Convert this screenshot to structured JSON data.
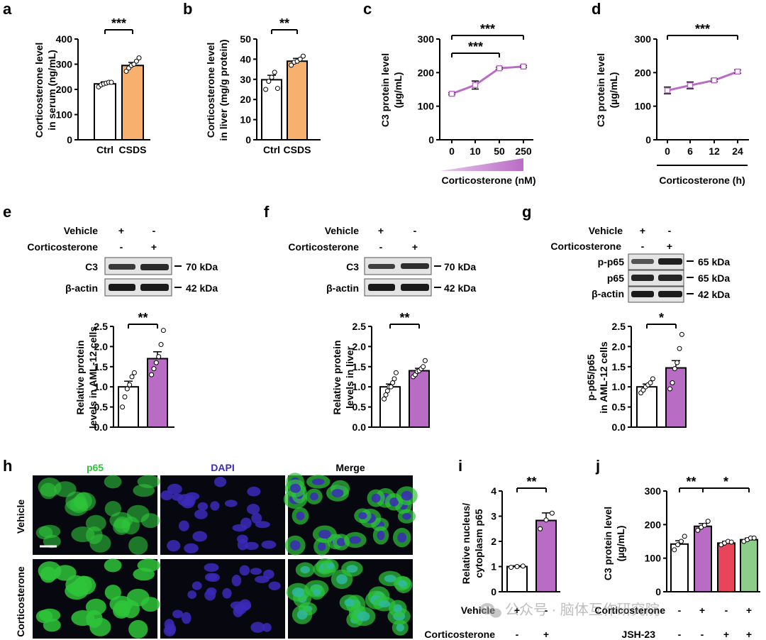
{
  "colors": {
    "corticosterone_purple": "#b86cc4",
    "csds_orange": "#f7b06e",
    "red_bar": "#e8445a",
    "green_bar": "#8ccd8a",
    "p65_green": "#2ec43a",
    "dapi_blue": "#3a2ab8",
    "line_purple": "#b86cc4"
  },
  "panels": {
    "a": {
      "label": "a",
      "ylabel": [
        "Corticosterone level",
        "in serum (ng/mL)"
      ],
      "sig": "***"
    },
    "b": {
      "label": "b",
      "ylabel": [
        "Corticosterone level",
        "in liver (mg/g protein)"
      ],
      "sig": "**"
    },
    "c": {
      "label": "c",
      "ylabel": [
        "C3 protein level",
        "(µg/mL)"
      ],
      "sig1": "***",
      "sig2": "***",
      "xlabel": "Corticosterone (nM)"
    },
    "d": {
      "label": "d",
      "ylabel": [
        "C3 protein level",
        "(µg/mL)"
      ],
      "sig": "***",
      "xlabel": "Corticosterone (h)"
    },
    "e": {
      "label": "e",
      "ylabel": [
        "Relative protein",
        "levels in AML-12 cells"
      ],
      "sig": "**"
    },
    "f": {
      "label": "f",
      "ylabel": [
        "Relative protein",
        "levels in liver"
      ],
      "sig": "**"
    },
    "g": {
      "label": "g",
      "ylabel": [
        "p-p65/p65",
        "in AML-12 cells"
      ],
      "sig": "*"
    },
    "h": {
      "label": "h",
      "p65": "p65",
      "dapi": "DAPI",
      "merge": "Merge",
      "row1": "Vehicle",
      "row2": "Corticosterone"
    },
    "i": {
      "label": "i",
      "ylabel": [
        "Relative nucleus/",
        "cytoplasm p65"
      ],
      "sig": "**"
    },
    "j": {
      "label": "j",
      "ylabel": [
        "C3 protein level",
        "(µg/mL)"
      ],
      "sig1": "**",
      "sig2": "*",
      "row3": "JSH-23"
    }
  },
  "blots": {
    "vehicle": "Vehicle",
    "corticosterone": "Corticosterone",
    "plus": "+",
    "minus": "-",
    "c3": "C3",
    "bactin": "β-actin",
    "pp65": "p-p65",
    "p65": "p65",
    "kda70": "70 kDa",
    "kda42": "42 kDa",
    "kda65": "65 kDa"
  },
  "watermark": "公众号 · 脑体互作研究院",
  "chart_data": [
    {
      "panel": "a",
      "type": "bar",
      "categories": [
        "Ctrl",
        "CSDS"
      ],
      "values": [
        222,
        295
      ],
      "errors": [
        8,
        12
      ],
      "points": [
        [
          210,
          218,
          222,
          225,
          228,
          228
        ],
        [
          272,
          285,
          295,
          300,
          312,
          325
        ]
      ],
      "ylim": [
        0,
        400
      ],
      "yticks": [
        0,
        100,
        200,
        300,
        400
      ],
      "sig": "***"
    },
    {
      "panel": "b",
      "type": "bar",
      "categories": [
        "Ctrl",
        "CSDS"
      ],
      "values": [
        29.8,
        39
      ],
      "errors": [
        2.2,
        1.4
      ],
      "points": [
        [
          25,
          29,
          31,
          33.5,
          25.5
        ],
        [
          37,
          38.5,
          39,
          40,
          41.5
        ]
      ],
      "ylim": [
        0,
        50
      ],
      "yticks": [
        0,
        10,
        20,
        30,
        40,
        50
      ],
      "sig": "**"
    },
    {
      "panel": "c",
      "type": "line",
      "x": [
        "0",
        "10",
        "50",
        "250"
      ],
      "y": [
        137,
        163,
        213,
        218
      ],
      "errors": [
        3,
        12,
        3,
        3
      ],
      "ylim": [
        0,
        300
      ],
      "yticks": [
        0,
        100,
        200,
        300
      ],
      "xlabel": "Corticosterone (nM)"
    },
    {
      "panel": "d",
      "type": "line",
      "x": [
        "0",
        "6",
        "12",
        "24"
      ],
      "y": [
        147,
        162,
        177,
        203
      ],
      "errors": [
        10,
        10,
        4,
        5
      ],
      "ylim": [
        0,
        300
      ],
      "yticks": [
        0,
        100,
        200,
        300
      ],
      "xlabel": "Corticosterone (h)"
    },
    {
      "panel": "e",
      "type": "bar",
      "categories": [
        "Vehicle",
        "Corticosterone"
      ],
      "values": [
        1.0,
        1.7
      ],
      "errors": [
        0.14,
        0.17
      ],
      "points": [
        [
          0.5,
          0.75,
          0.95,
          1.05,
          1.25,
          1.35
        ],
        [
          1.3,
          1.45,
          1.6,
          1.75,
          2.05,
          2.4
        ]
      ],
      "ylim": [
        0,
        2.5
      ],
      "yticks": [
        0.0,
        0.5,
        1.0,
        1.5,
        2.0,
        2.5
      ],
      "sig": "**"
    },
    {
      "panel": "f",
      "type": "bar",
      "categories": [
        "Vehicle",
        "Corticosterone"
      ],
      "values": [
        1.0,
        1.4
      ],
      "errors": [
        0.07,
        0.06
      ],
      "points": [
        [
          0.7,
          0.8,
          0.9,
          1.0,
          1.0,
          1.1,
          1.2,
          1.35
        ],
        [
          1.25,
          1.3,
          1.38,
          1.4,
          1.45,
          1.5,
          1.65
        ]
      ],
      "ylim": [
        0,
        2.5
      ],
      "yticks": [
        0.0,
        0.5,
        1.0,
        1.5,
        2.0,
        2.5
      ],
      "sig": "**"
    },
    {
      "panel": "g",
      "type": "bar",
      "categories": [
        "Vehicle",
        "Corticosterone"
      ],
      "values": [
        1.0,
        1.47
      ],
      "errors": [
        0.07,
        0.18
      ],
      "points": [
        [
          0.85,
          0.92,
          1.0,
          1.05,
          1.1,
          1.2
        ],
        [
          0.95,
          1.1,
          1.45,
          1.6,
          1.95,
          2.3
        ]
      ],
      "ylim": [
        0,
        2.5
      ],
      "yticks": [
        0.0,
        0.5,
        1.0,
        1.5,
        2.0,
        2.5
      ],
      "sig": "*"
    },
    {
      "panel": "i",
      "type": "bar",
      "categories": [
        "Vehicle",
        "Corticosterone"
      ],
      "values": [
        1.0,
        2.83
      ],
      "errors": [
        0.03,
        0.3
      ],
      "points": [
        [
          0.97,
          1.0,
          1.02
        ],
        [
          2.5,
          2.85,
          3.12
        ]
      ],
      "ylim": [
        0,
        4
      ],
      "yticks": [
        0,
        1,
        2,
        3,
        4
      ],
      "sig": "**"
    },
    {
      "panel": "j",
      "type": "bar",
      "categories": [
        "Vehicle",
        "Corticosterone",
        "JSH-23",
        "Corticosterone + JSH-23"
      ],
      "values": [
        142,
        195,
        145,
        155
      ],
      "errors": [
        10,
        8,
        5,
        5
      ],
      "points": [
        [
          125,
          140,
          150,
          165
        ],
        [
          183,
          192,
          198,
          210
        ],
        [
          140,
          145,
          150,
          148
        ],
        [
          150,
          155,
          160,
          160
        ]
      ],
      "ylim": [
        0,
        300
      ],
      "yticks": [
        0,
        100,
        200,
        300
      ],
      "sig1": "**",
      "sig2": "*"
    }
  ]
}
